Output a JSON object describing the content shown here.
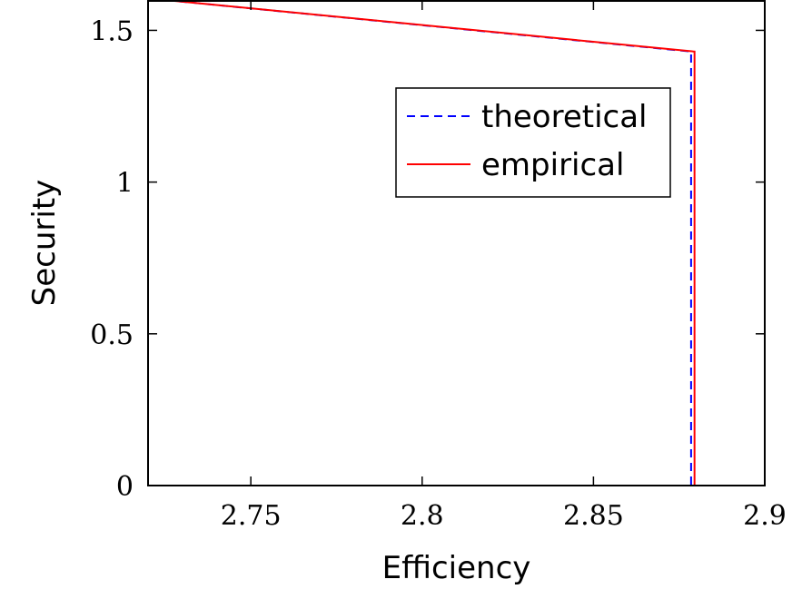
{
  "chart_data": {
    "type": "line",
    "title": "",
    "xlabel": "Efficiency",
    "ylabel": "Security",
    "xlim": [
      2.72,
      2.9
    ],
    "ylim": [
      0,
      1.6
    ],
    "xticks": [
      2.75,
      2.8,
      2.85,
      2.9
    ],
    "xtick_labels": [
      "2.75",
      "2.8",
      "2.85",
      "2.9"
    ],
    "yticks": [
      0,
      0.5,
      1,
      1.5
    ],
    "ytick_labels": [
      "0",
      "0.5",
      "1",
      "1.5"
    ],
    "grid": false,
    "legend_position": "top-right",
    "series": [
      {
        "name": "theoretical",
        "color": "#0000ff",
        "dash": "dashed",
        "x": [
          2.725,
          2.8785,
          2.8785
        ],
        "y": [
          1.6,
          1.43,
          0
        ]
      },
      {
        "name": "empirical",
        "color": "#ff0000",
        "dash": "solid",
        "x": [
          2.725,
          2.8795,
          2.8795
        ],
        "y": [
          1.6,
          1.43,
          0
        ]
      }
    ]
  }
}
